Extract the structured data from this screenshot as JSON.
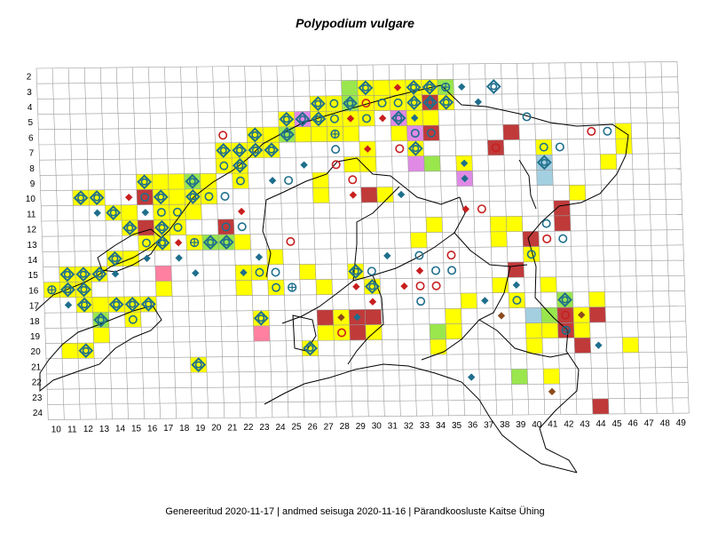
{
  "title": "Polypodium vulgare",
  "footer": "Genereeritud 2020-11-17  |  andmed seisuga 2020-11-16  |  Pärandkoosluste Kaitse Ühing",
  "row_labels": [
    "2",
    "3",
    "4",
    "5",
    "6",
    "7",
    "8",
    "9",
    "10",
    "11",
    "12",
    "13",
    "14",
    "15",
    "16",
    "17",
    "18",
    "19",
    "20",
    "21",
    "22",
    "23",
    "24"
  ],
  "col_labels": [
    "10",
    "11",
    "12",
    "13",
    "14",
    "15",
    "16",
    "17",
    "18",
    "19",
    "20",
    "21",
    "22",
    "23",
    "24",
    "25",
    "26",
    "27",
    "28",
    "29",
    "30",
    "31",
    "32",
    "33",
    "34",
    "35",
    "36",
    "37",
    "38",
    "39",
    "40",
    "41",
    "42",
    "43",
    "44",
    "45",
    "46",
    "47",
    "48",
    "49"
  ],
  "colors": {
    "yellow": "#ffff00",
    "green": "#99e64d",
    "darkred": "#c03a3a",
    "pink": "#ff80a0",
    "violet": "#e08ae6",
    "lightblue": "#a3cfe0",
    "teal_marker": "#1e6e8c",
    "red_marker": "#c81e1e",
    "brown_marker": "#8c4a1e",
    "grid": "#999999",
    "border": "#000000"
  },
  "cells": [
    {
      "c": "29",
      "r": "3",
      "f": "green"
    },
    {
      "c": "30",
      "r": "3",
      "f": "yellow",
      "m": "tdiam"
    },
    {
      "c": "31",
      "r": "3",
      "f": "yellow"
    },
    {
      "c": "32",
      "r": "3",
      "f": "yellow",
      "m": "rdiam"
    },
    {
      "c": "33",
      "r": "3",
      "f": "yellow",
      "m": "tdiam"
    },
    {
      "c": "34",
      "r": "3",
      "f": "yellow",
      "m": "tdiam"
    },
    {
      "c": "35",
      "r": "3",
      "f": "green",
      "m": "tcross"
    },
    {
      "c": "27",
      "r": "4",
      "f": "yellow",
      "m": "tdiam"
    },
    {
      "c": "28",
      "r": "4",
      "f": "yellow",
      "m": "tcirc"
    },
    {
      "c": "29",
      "r": "4",
      "f": "green",
      "m": "tdiam"
    },
    {
      "c": "30",
      "r": "4",
      "f": "yellow",
      "m": "rcirc"
    },
    {
      "c": "31",
      "r": "4",
      "f": "yellow",
      "m": "tcirc"
    },
    {
      "c": "32",
      "r": "4",
      "f": "yellow",
      "m": "tcirc"
    },
    {
      "c": "33",
      "r": "4",
      "f": "yellow",
      "m": "tdiam"
    },
    {
      "c": "34",
      "r": "4",
      "f": "darkred",
      "m": "tdiam"
    },
    {
      "c": "35",
      "r": "4",
      "f": "yellow",
      "m": "tdiam"
    },
    {
      "c": "25",
      "r": "5",
      "f": "yellow",
      "m": "tdiam"
    },
    {
      "c": "26",
      "r": "5",
      "f": "violet",
      "m": "tdiam"
    },
    {
      "c": "27",
      "r": "5",
      "f": "yellow",
      "m": "tdiam"
    },
    {
      "c": "28",
      "r": "5",
      "f": "yellow",
      "m": "tcirc"
    },
    {
      "c": "29",
      "r": "5",
      "f": "yellow",
      "m": "rdiam"
    },
    {
      "c": "30",
      "r": "5",
      "f": "yellow",
      "m": "tcirc"
    },
    {
      "c": "32",
      "r": "5",
      "f": "violet",
      "m": "tdiam"
    },
    {
      "c": "33",
      "r": "5",
      "f": "yellow",
      "m": "bdiam"
    },
    {
      "c": "34",
      "r": "5",
      "f": "yellow"
    },
    {
      "c": "23",
      "r": "6",
      "f": "yellow",
      "m": "tdiam"
    },
    {
      "c": "24",
      "r": "6",
      "f": "yellow"
    },
    {
      "c": "25",
      "r": "6",
      "f": "green",
      "m": "tdiam"
    },
    {
      "c": "26",
      "r": "6",
      "f": "yellow"
    },
    {
      "c": "27",
      "r": "6",
      "f": "yellow"
    },
    {
      "c": "28",
      "r": "6",
      "f": "yellow",
      "m": "tcross"
    },
    {
      "c": "29",
      "r": "6",
      "f": "yellow"
    },
    {
      "c": "32",
      "r": "6",
      "f": "yellow"
    },
    {
      "c": "33",
      "r": "6",
      "f": "violet",
      "m": "tcirc"
    },
    {
      "c": "34",
      "r": "6",
      "f": "darkred",
      "m": "tcirc"
    },
    {
      "c": "39",
      "r": "6",
      "f": "darkred"
    },
    {
      "c": "46",
      "r": "6",
      "f": "yellow"
    },
    {
      "c": "21",
      "r": "7",
      "f": "yellow",
      "m": "tdiam"
    },
    {
      "c": "22",
      "r": "7",
      "f": "yellow",
      "m": "tdiam"
    },
    {
      "c": "23",
      "r": "7",
      "f": "yellow",
      "m": "tdiam"
    },
    {
      "c": "24",
      "r": "7",
      "f": "yellow",
      "m": "tdiam"
    },
    {
      "c": "30",
      "r": "7",
      "f": "yellow"
    },
    {
      "c": "33",
      "r": "7",
      "f": "yellow",
      "m": "tdiam"
    },
    {
      "c": "38",
      "r": "7",
      "f": "darkred"
    },
    {
      "c": "41",
      "r": "7",
      "f": "yellow",
      "m": "tcirc"
    },
    {
      "c": "46",
      "r": "7",
      "f": "yellow"
    },
    {
      "c": "21",
      "r": "8",
      "f": "yellow",
      "m": "tcirc"
    },
    {
      "c": "22",
      "r": "8",
      "f": "yellow",
      "m": "tdiam"
    },
    {
      "c": "29",
      "r": "8",
      "f": "yellow"
    },
    {
      "c": "30",
      "r": "8",
      "f": "yellow"
    },
    {
      "c": "33",
      "r": "8",
      "f": "violet"
    },
    {
      "c": "34",
      "r": "8",
      "f": "green"
    },
    {
      "c": "36",
      "r": "8",
      "f": "yellow"
    },
    {
      "c": "41",
      "r": "8",
      "f": "lightblue",
      "m": "tdiam"
    },
    {
      "c": "45",
      "r": "8",
      "f": "yellow"
    },
    {
      "c": "16",
      "r": "9",
      "f": "yellow",
      "m": "tdiam"
    },
    {
      "c": "17",
      "r": "9",
      "f": "yellow"
    },
    {
      "c": "18",
      "r": "9",
      "f": "yellow"
    },
    {
      "c": "19",
      "r": "9",
      "f": "green",
      "m": "tdiam"
    },
    {
      "c": "20",
      "r": "9",
      "f": "yellow"
    },
    {
      "c": "22",
      "r": "9",
      "f": "yellow",
      "m": "tcirc"
    },
    {
      "c": "27",
      "r": "9",
      "f": "yellow"
    },
    {
      "c": "36",
      "r": "9",
      "f": "violet"
    },
    {
      "c": "41",
      "r": "9",
      "f": "lightblue"
    },
    {
      "c": "12",
      "r": "10",
      "f": "yellow",
      "m": "tdiam"
    },
    {
      "c": "13",
      "r": "10",
      "f": "yellow",
      "m": "tdiam"
    },
    {
      "c": "16",
      "r": "10",
      "f": "darkred",
      "m": "tcirc"
    },
    {
      "c": "17",
      "r": "10",
      "f": "yellow",
      "m": "tdiam"
    },
    {
      "c": "18",
      "r": "10",
      "f": "yellow"
    },
    {
      "c": "19",
      "r": "10",
      "f": "yellow",
      "m": "tdiam"
    },
    {
      "c": "20",
      "r": "10",
      "f": "yellow",
      "m": "tcirc"
    },
    {
      "c": "27",
      "r": "10",
      "f": "yellow"
    },
    {
      "c": "30",
      "r": "10",
      "f": "darkred"
    },
    {
      "c": "31",
      "r": "10",
      "f": "yellow"
    },
    {
      "c": "43",
      "r": "10",
      "f": "yellow"
    },
    {
      "c": "14",
      "r": "11",
      "f": "yellow",
      "m": "tdiam"
    },
    {
      "c": "15",
      "r": "11",
      "f": "yellow"
    },
    {
      "c": "17",
      "r": "11",
      "f": "yellow",
      "m": "tcirc"
    },
    {
      "c": "18",
      "r": "11",
      "f": "yellow",
      "m": "tcirc"
    },
    {
      "c": "19",
      "r": "11",
      "f": "yellow"
    },
    {
      "c": "42",
      "r": "11",
      "f": "darkred"
    },
    {
      "c": "15",
      "r": "12",
      "f": "yellow",
      "m": "tdiam"
    },
    {
      "c": "16",
      "r": "12",
      "f": "darkred"
    },
    {
      "c": "17",
      "r": "12",
      "f": "yellow",
      "m": "tdiam"
    },
    {
      "c": "18",
      "r": "12",
      "f": "yellow",
      "m": "tcirc"
    },
    {
      "c": "21",
      "r": "12",
      "f": "darkred",
      "m": "tcirc"
    },
    {
      "c": "34",
      "r": "12",
      "f": "yellow"
    },
    {
      "c": "38",
      "r": "12",
      "f": "yellow"
    },
    {
      "c": "39",
      "r": "12",
      "f": "yellow"
    },
    {
      "c": "42",
      "r": "12",
      "f": "darkred"
    },
    {
      "c": "16",
      "r": "13",
      "f": "yellow",
      "m": "tcirc"
    },
    {
      "c": "17",
      "r": "13",
      "f": "yellow",
      "m": "tdiam"
    },
    {
      "c": "19",
      "r": "13",
      "f": "yellow",
      "m": "tcross"
    },
    {
      "c": "20",
      "r": "13",
      "f": "green",
      "m": "tdiam"
    },
    {
      "c": "21",
      "r": "13",
      "f": "green",
      "m": "tdiam"
    },
    {
      "c": "22",
      "r": "13",
      "f": "yellow"
    },
    {
      "c": "33",
      "r": "13",
      "f": "yellow"
    },
    {
      "c": "38",
      "r": "13",
      "f": "yellow"
    },
    {
      "c": "40",
      "r": "13",
      "f": "darkred"
    },
    {
      "c": "14",
      "r": "14",
      "f": "yellow",
      "m": "tdiam"
    },
    {
      "c": "15",
      "r": "14",
      "f": "yellow"
    },
    {
      "c": "24",
      "r": "14",
      "f": "yellow"
    },
    {
      "c": "40",
      "r": "14",
      "f": "yellow",
      "m": "tcirc"
    },
    {
      "c": "11",
      "r": "15",
      "f": "yellow",
      "m": "tdiam"
    },
    {
      "c": "12",
      "r": "15",
      "f": "yellow",
      "m": "tdiam"
    },
    {
      "c": "13",
      "r": "15",
      "f": "yellow",
      "m": "tdiam"
    },
    {
      "c": "17",
      "r": "15",
      "f": "pink"
    },
    {
      "c": "22",
      "r": "15",
      "f": "yellow",
      "m": "bdiam"
    },
    {
      "c": "23",
      "r": "15",
      "f": "yellow",
      "m": "tcirc"
    },
    {
      "c": "26",
      "r": "15",
      "f": "yellow"
    },
    {
      "c": "29",
      "r": "15",
      "f": "yellow",
      "m": "tdiam"
    },
    {
      "c": "39",
      "r": "15",
      "f": "darkred"
    },
    {
      "c": "10",
      "r": "16",
      "f": "yellow",
      "m": "tcross"
    },
    {
      "c": "11",
      "r": "16",
      "f": "yellow",
      "m": "tdiam"
    },
    {
      "c": "12",
      "r": "16",
      "f": "yellow",
      "m": "tdiam"
    },
    {
      "c": "17",
      "r": "16",
      "f": "yellow"
    },
    {
      "c": "22",
      "r": "16",
      "f": "yellow"
    },
    {
      "c": "24",
      "r": "16",
      "f": "yellow",
      "m": "tcirc"
    },
    {
      "c": "27",
      "r": "16",
      "f": "yellow"
    },
    {
      "c": "30",
      "r": "16",
      "f": "yellow",
      "m": "tdiam"
    },
    {
      "c": "38",
      "r": "16",
      "f": "yellow"
    },
    {
      "c": "41",
      "r": "16",
      "f": "yellow"
    },
    {
      "c": "12",
      "r": "17",
      "f": "yellow",
      "m": "tdiam"
    },
    {
      "c": "13",
      "r": "17",
      "f": "yellow"
    },
    {
      "c": "14",
      "r": "17",
      "f": "yellow",
      "m": "tdiam"
    },
    {
      "c": "15",
      "r": "17",
      "f": "yellow",
      "m": "tdiam"
    },
    {
      "c": "16",
      "r": "17",
      "f": "yellow",
      "m": "tdiam"
    },
    {
      "c": "36",
      "r": "17",
      "f": "yellow"
    },
    {
      "c": "39",
      "r": "17",
      "f": "yellow",
      "m": "tcirc"
    },
    {
      "c": "42",
      "r": "17",
      "f": "green",
      "m": "tdiam"
    },
    {
      "c": "44",
      "r": "17",
      "f": "yellow"
    },
    {
      "c": "13",
      "r": "18",
      "f": "green",
      "m": "tdiam"
    },
    {
      "c": "15",
      "r": "18",
      "f": "yellow",
      "m": "tcirc"
    },
    {
      "c": "23",
      "r": "18",
      "f": "yellow",
      "m": "tdiam"
    },
    {
      "c": "27",
      "r": "18",
      "f": "darkred"
    },
    {
      "c": "28",
      "r": "18",
      "f": "yellow"
    },
    {
      "c": "29",
      "r": "18",
      "f": "darkred",
      "m": "bdiam"
    },
    {
      "c": "30",
      "r": "18",
      "f": "darkred"
    },
    {
      "c": "35",
      "r": "18",
      "f": "yellow"
    },
    {
      "c": "40",
      "r": "18",
      "f": "lightblue"
    },
    {
      "c": "41",
      "r": "18",
      "f": "green"
    },
    {
      "c": "42",
      "r": "18",
      "f": "darkred",
      "m": "rcirc"
    },
    {
      "c": "43",
      "r": "18",
      "f": "yellow",
      "m": "bdiam"
    },
    {
      "c": "44",
      "r": "18",
      "f": "darkred"
    },
    {
      "c": "13",
      "r": "19",
      "f": "yellow"
    },
    {
      "c": "23",
      "r": "19",
      "f": "pink"
    },
    {
      "c": "27",
      "r": "19",
      "f": "yellow"
    },
    {
      "c": "28",
      "r": "19",
      "f": "yellow",
      "m": "rcirc"
    },
    {
      "c": "29",
      "r": "19",
      "f": "darkred"
    },
    {
      "c": "30",
      "r": "19",
      "f": "yellow"
    },
    {
      "c": "34",
      "r": "19",
      "f": "green"
    },
    {
      "c": "35",
      "r": "19",
      "f": "yellow"
    },
    {
      "c": "40",
      "r": "19",
      "f": "yellow"
    },
    {
      "c": "41",
      "r": "19",
      "f": "yellow"
    },
    {
      "c": "42",
      "r": "19",
      "f": "darkred",
      "m": "tcross"
    },
    {
      "c": "43",
      "r": "19",
      "f": "yellow"
    },
    {
      "c": "11",
      "r": "20",
      "f": "yellow"
    },
    {
      "c": "12",
      "r": "20",
      "f": "yellow",
      "m": "tdiam"
    },
    {
      "c": "26",
      "r": "20",
      "f": "yellow",
      "m": "tdiam"
    },
    {
      "c": "34",
      "r": "20",
      "f": "yellow"
    },
    {
      "c": "40",
      "r": "20",
      "f": "yellow"
    },
    {
      "c": "43",
      "r": "20",
      "f": "darkred"
    },
    {
      "c": "46",
      "r": "20",
      "f": "yellow"
    },
    {
      "c": "19",
      "r": "21",
      "f": "yellow",
      "m": "tdiam"
    },
    {
      "c": "39",
      "r": "22",
      "f": "green"
    },
    {
      "c": "41",
      "r": "22",
      "f": "yellow"
    },
    {
      "c": "44",
      "r": "24",
      "f": "darkred"
    }
  ],
  "free_markers": [
    {
      "c": "38",
      "r": "3",
      "m": "tdiam"
    },
    {
      "c": "36",
      "r": "3",
      "m": "bdiam"
    },
    {
      "c": "37",
      "r": "4",
      "m": "bdiam"
    },
    {
      "c": "40",
      "r": "5",
      "m": "tcirc"
    },
    {
      "c": "31",
      "r": "5",
      "m": "rdiam"
    },
    {
      "c": "21",
      "r": "6",
      "m": "rcirc"
    },
    {
      "c": "44",
      "r": "6",
      "m": "rcirc"
    },
    {
      "c": "45",
      "r": "6",
      "m": "tcirc"
    },
    {
      "c": "28",
      "r": "7",
      "m": "tcirc"
    },
    {
      "c": "30",
      "r": "7",
      "m": "rdiam"
    },
    {
      "c": "32",
      "r": "7",
      "m": "rcirc"
    },
    {
      "c": "38",
      "r": "7",
      "m": "rcirc"
    },
    {
      "c": "42",
      "r": "7",
      "m": "tcirc"
    },
    {
      "c": "26",
      "r": "8",
      "m": "bdiam"
    },
    {
      "c": "28",
      "r": "8",
      "m": "rcirc"
    },
    {
      "c": "36",
      "r": "8",
      "m": "bdiam"
    },
    {
      "c": "24",
      "r": "9",
      "m": "bdiam"
    },
    {
      "c": "25",
      "r": "9",
      "m": "tcirc"
    },
    {
      "c": "29",
      "r": "9",
      "m": "rcirc"
    },
    {
      "c": "36",
      "r": "9",
      "m": "bdiam"
    },
    {
      "c": "15",
      "r": "10",
      "m": "rdiam"
    },
    {
      "c": "21",
      "r": "10",
      "m": "tcirc"
    },
    {
      "c": "29",
      "r": "10",
      "m": "rdiam"
    },
    {
      "c": "32",
      "r": "10",
      "m": "bdiam"
    },
    {
      "c": "13",
      "r": "11",
      "m": "bdiam"
    },
    {
      "c": "16",
      "r": "11",
      "m": "bdiam"
    },
    {
      "c": "22",
      "r": "11",
      "m": "rdiam"
    },
    {
      "c": "36",
      "r": "11",
      "m": "rdiam"
    },
    {
      "c": "37",
      "r": "11",
      "m": "rcirc"
    },
    {
      "c": "22",
      "r": "12",
      "m": "tcirc"
    },
    {
      "c": "41",
      "r": "12",
      "m": "tcirc"
    },
    {
      "c": "18",
      "r": "13",
      "m": "rdiam"
    },
    {
      "c": "25",
      "r": "13",
      "m": "rcirc"
    },
    {
      "c": "41",
      "r": "13",
      "m": "rcirc"
    },
    {
      "c": "42",
      "r": "13",
      "m": "tcirc"
    },
    {
      "c": "16",
      "r": "14",
      "m": "bdiam"
    },
    {
      "c": "18",
      "r": "14",
      "m": "bdiam"
    },
    {
      "c": "23",
      "r": "14",
      "m": "bdiam"
    },
    {
      "c": "31",
      "r": "14",
      "m": "bdiam"
    },
    {
      "c": "33",
      "r": "14",
      "m": "tcirc"
    },
    {
      "c": "35",
      "r": "14",
      "m": "rcirc"
    },
    {
      "c": "14",
      "r": "15",
      "m": "bdiam"
    },
    {
      "c": "19",
      "r": "15",
      "m": "bdiam"
    },
    {
      "c": "24",
      "r": "15",
      "m": "tcirc"
    },
    {
      "c": "30",
      "r": "15",
      "m": "tcirc"
    },
    {
      "c": "33",
      "r": "15",
      "m": "rdiam"
    },
    {
      "c": "34",
      "r": "15",
      "m": "tcirc"
    },
    {
      "c": "35",
      "r": "15",
      "m": "tcirc"
    },
    {
      "c": "25",
      "r": "16",
      "m": "tcross"
    },
    {
      "c": "29",
      "r": "16",
      "m": "rdiam"
    },
    {
      "c": "32",
      "r": "16",
      "m": "rdiam"
    },
    {
      "c": "33",
      "r": "16",
      "m": "rcirc"
    },
    {
      "c": "34",
      "r": "16",
      "m": "rcirc"
    },
    {
      "c": "39",
      "r": "16",
      "m": "bdiam"
    },
    {
      "c": "11",
      "r": "17",
      "m": "bdiam"
    },
    {
      "c": "30",
      "r": "17",
      "m": "rdiam"
    },
    {
      "c": "33",
      "r": "17",
      "m": "tcirc"
    },
    {
      "c": "37",
      "r": "17",
      "m": "bdiam"
    },
    {
      "c": "28",
      "r": "18",
      "m": "bdiam"
    },
    {
      "c": "38",
      "r": "18",
      "m": "bdiam"
    },
    {
      "c": "44",
      "r": "20",
      "m": "bdiam"
    },
    {
      "c": "36",
      "r": "22",
      "m": "bdiam"
    },
    {
      "c": "41",
      "r": "23",
      "m": "bdiam"
    }
  ]
}
